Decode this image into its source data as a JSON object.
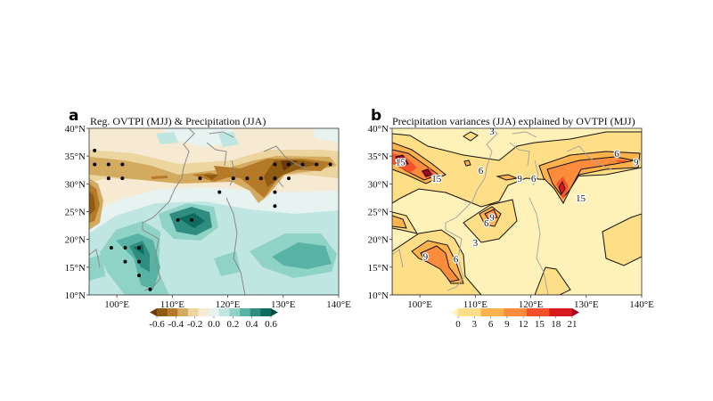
{
  "chart_data": [
    {
      "type": "heatmap",
      "panel_label": "a",
      "title": "Reg. OVTPI (MJJ) & Precipitation (JJA)",
      "xlim": [
        95,
        140
      ],
      "ylim": [
        10,
        40
      ],
      "x_ticks": [
        100,
        110,
        120,
        130,
        140
      ],
      "x_tick_labels": [
        "100°E",
        "110°E",
        "120°E",
        "130°E",
        "140°E"
      ],
      "y_ticks": [
        10,
        15,
        20,
        25,
        30,
        35,
        40
      ],
      "y_tick_labels": [
        "10°N",
        "15°N",
        "20°N",
        "25°N",
        "30°N",
        "35°N",
        "40°N"
      ],
      "colorbar": {
        "levels": [
          -0.6,
          -0.5,
          -0.4,
          -0.3,
          -0.2,
          -0.1,
          0.0,
          0.1,
          0.2,
          0.3,
          0.4,
          0.5,
          0.6
        ],
        "tick_labels": [
          "-0.6",
          "-0.4",
          "-0.2",
          "0.0",
          "0.2",
          "0.4",
          "0.6"
        ],
        "colors": [
          "#6b3a07",
          "#8f5a12",
          "#b47a28",
          "#d4aa60",
          "#ecd59e",
          "#f6ebd2",
          "#e6f3f1",
          "#bfe6e0",
          "#8fd2c6",
          "#58b3a5",
          "#2f8d80",
          "#0d6b5f",
          "#004b40"
        ],
        "extend": "both"
      },
      "significance_dots": [
        [
          96,
          36
        ],
        [
          96,
          33.5
        ],
        [
          98.5,
          33.5
        ],
        [
          101,
          33.5
        ],
        [
          98.5,
          31
        ],
        [
          101,
          31
        ],
        [
          115,
          31
        ],
        [
          118.5,
          28.5
        ],
        [
          121,
          31
        ],
        [
          123.5,
          31
        ],
        [
          126,
          31
        ],
        [
          128.5,
          31
        ],
        [
          128.5,
          28.5
        ],
        [
          128.5,
          26
        ],
        [
          128.5,
          33.5
        ],
        [
          131,
          33.5
        ],
        [
          133.5,
          33.5
        ],
        [
          136,
          33.5
        ],
        [
          138.5,
          33.5
        ],
        [
          131,
          31
        ],
        [
          111,
          23.5
        ],
        [
          113.5,
          23.5
        ],
        [
          99,
          18.5
        ],
        [
          101.5,
          18.5
        ],
        [
          104,
          18.5
        ],
        [
          101.5,
          16
        ],
        [
          104,
          16
        ],
        [
          104,
          13.5
        ],
        [
          106,
          11
        ]
      ],
      "regions": [
        {
          "name": "dry-band-north",
          "value": -0.3
        },
        {
          "name": "dry-core-korea-japan",
          "value": -0.6
        },
        {
          "name": "dry-core-southwest",
          "value": -0.5
        },
        {
          "name": "wet-indochina",
          "value": 0.5
        },
        {
          "name": "wet-south-china",
          "value": 0.6
        },
        {
          "name": "wet-west-pacific",
          "value": 0.4
        }
      ]
    },
    {
      "type": "heatmap",
      "panel_label": "b",
      "title": "Precipitation variances (JJA) explained by OVTPI (MJJ)",
      "xlim": [
        95,
        140
      ],
      "ylim": [
        10,
        40
      ],
      "x_ticks": [
        100,
        110,
        120,
        130,
        140
      ],
      "x_tick_labels": [
        "100°E",
        "110°E",
        "120°E",
        "130°E",
        "140°E"
      ],
      "y_ticks": [
        10,
        15,
        20,
        25,
        30,
        35,
        40
      ],
      "y_tick_labels": [
        "10°N",
        "15°N",
        "20°N",
        "25°N",
        "30°N",
        "35°N",
        "40°N"
      ],
      "colorbar": {
        "levels": [
          0,
          3,
          6,
          9,
          12,
          15,
          18,
          21
        ],
        "tick_labels": [
          "0",
          "3",
          "6",
          "9",
          "12",
          "15",
          "18",
          "21"
        ],
        "colors": [
          "#fff2b8",
          "#fede86",
          "#feb24c",
          "#fd8d3c",
          "#f4512a",
          "#d9171f",
          "#a50026"
        ],
        "extend": "both"
      },
      "contour_labels": [
        {
          "text": "3",
          "lon": 113,
          "lat": 39.5
        },
        {
          "text": "6",
          "lon": 111,
          "lat": 32.5
        },
        {
          "text": "15",
          "lon": 96.5,
          "lat": 34
        },
        {
          "text": "15",
          "lon": 103,
          "lat": 31
        },
        {
          "text": "9",
          "lon": 118,
          "lat": 31
        },
        {
          "text": "6",
          "lon": 120.5,
          "lat": 31
        },
        {
          "text": "6",
          "lon": 135.5,
          "lat": 35.5
        },
        {
          "text": "9",
          "lon": 139,
          "lat": 34
        },
        {
          "text": "15",
          "lon": 129,
          "lat": 27.5
        },
        {
          "text": "9",
          "lon": 113,
          "lat": 24
        },
        {
          "text": "6",
          "lon": 112,
          "lat": 23
        },
        {
          "text": "3",
          "lon": 110,
          "lat": 19.5
        },
        {
          "text": "9",
          "lon": 101,
          "lat": 17
        },
        {
          "text": "6",
          "lon": 106.5,
          "lat": 16.5
        }
      ]
    }
  ]
}
